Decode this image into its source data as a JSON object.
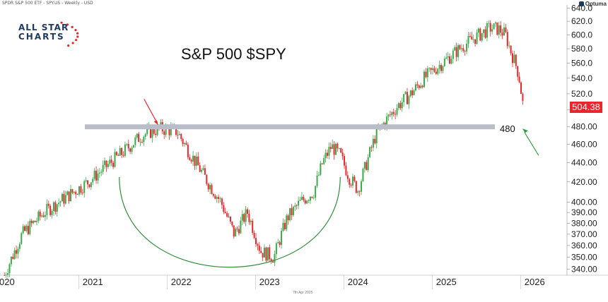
{
  "header": {
    "text": "SPDR S&P 500 ETF - SPY.US - Weekly - USD"
  },
  "brand": {
    "name": "Optuma"
  },
  "logo": {
    "line1": "ALL STAR",
    "line2": "CHARTS"
  },
  "title": "S&P 500 $SPY",
  "footer_date": "7th Apr 2025",
  "last_price": "504.38",
  "level_label": "480",
  "colors": {
    "up": "#3aa94a",
    "down": "#e8262b",
    "level": "#b9bdc7",
    "arc": "#2e8b3a",
    "arrow_red": "#e8262b",
    "arrow_green": "#2e9a3e"
  },
  "chart_data": {
    "type": "candlestick",
    "y_scale": "log",
    "ylim": [
      335,
      645
    ],
    "y_ticks": [
      "640.0",
      "620.0",
      "600.0",
      "580.0",
      "560.0",
      "540.0",
      "520.0",
      "500.0",
      "480.00",
      "460.00",
      "440.00",
      "420.00",
      "400.00",
      "390.00",
      "380.00",
      "370.00",
      "360.00",
      "350.00",
      "340.00"
    ],
    "x_ticks": [
      "2020",
      "2021",
      "2022",
      "2023",
      "2024",
      "2025",
      "2026"
    ],
    "xlim": [
      2019.95,
      2026.35
    ],
    "horizontal_level": 480,
    "annotations": {
      "support_arc_start": 2021.3,
      "support_arc_end": 2023.8,
      "support_arc_bottom": 343
    },
    "price_path": [
      [
        2020.0,
        335
      ],
      [
        2020.2,
        370
      ],
      [
        2020.45,
        390
      ],
      [
        2020.7,
        405
      ],
      [
        2020.95,
        420
      ],
      [
        2021.2,
        440
      ],
      [
        2021.35,
        452
      ],
      [
        2021.55,
        470
      ],
      [
        2021.75,
        478
      ],
      [
        2021.95,
        475
      ],
      [
        2022.1,
        450
      ],
      [
        2022.3,
        420
      ],
      [
        2022.45,
        400
      ],
      [
        2022.6,
        370
      ],
      [
        2022.75,
        390
      ],
      [
        2022.9,
        355
      ],
      [
        2023.05,
        350
      ],
      [
        2023.2,
        385
      ],
      [
        2023.35,
        400
      ],
      [
        2023.5,
        410
      ],
      [
        2023.6,
        440
      ],
      [
        2023.7,
        458
      ],
      [
        2023.8,
        448
      ],
      [
        2023.9,
        425
      ],
      [
        2024.0,
        412
      ],
      [
        2024.1,
        440
      ],
      [
        2024.2,
        470
      ],
      [
        2024.3,
        485
      ],
      [
        2024.45,
        505
      ],
      [
        2024.6,
        520
      ],
      [
        2024.75,
        540
      ],
      [
        2024.85,
        550
      ],
      [
        2024.95,
        560
      ],
      [
        2025.1,
        575
      ],
      [
        2025.2,
        585
      ],
      [
        2025.35,
        598
      ],
      [
        2025.5,
        610
      ],
      [
        2025.6,
        608
      ],
      [
        2025.67,
        600
      ],
      [
        2025.72,
        580
      ],
      [
        2025.78,
        560
      ],
      [
        2025.82,
        545
      ],
      [
        2025.87,
        504.38
      ]
    ]
  }
}
